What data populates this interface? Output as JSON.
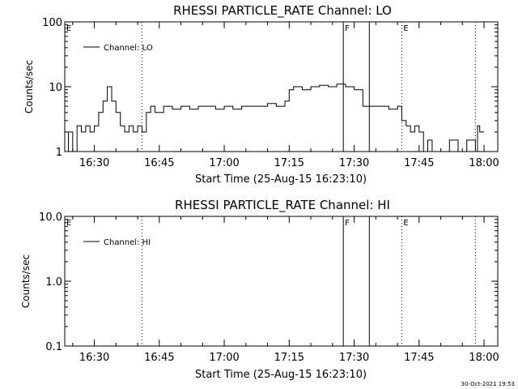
{
  "footer_timestamp": "30-Oct-2021 19:53",
  "chart_data": [
    {
      "type": "line",
      "title": "RHESSI PARTICLE_RATE Channel: LO",
      "xlabel": "Start Time (25-Aug-15 16:23:10)",
      "ylabel": "Counts/sec",
      "yscale": "log",
      "ylim": [
        1,
        100
      ],
      "xlim": [
        "16:23:10",
        "18:03:10"
      ],
      "x_ticks": [
        "16:30",
        "16:45",
        "17:00",
        "17:15",
        "17:30",
        "17:45",
        "18:00"
      ],
      "y_ticks": [
        "1",
        "10",
        "100"
      ],
      "legend": {
        "label": "Channel: LO",
        "position": "top-left"
      },
      "grid": false,
      "markers": [
        {
          "time": "16:41:00",
          "label": "",
          "style": "dotted"
        },
        {
          "time": "17:27:30",
          "label": "F",
          "style": "solid"
        },
        {
          "time": "17:33:30",
          "label": "",
          "style": "solid"
        },
        {
          "time": "17:41:00",
          "label": "E",
          "style": "dotted"
        },
        {
          "time": "17:58:00",
          "label": "",
          "style": "dotted"
        }
      ],
      "corner_label": "E",
      "series": [
        {
          "name": "Channel: LO",
          "x": [
            "16:23:10",
            "16:24:00",
            "16:25:00",
            "16:26:00",
            "16:27:00",
            "16:28:00",
            "16:29:00",
            "16:30:00",
            "16:31:00",
            "16:32:00",
            "16:33:00",
            "16:34:00",
            "16:35:00",
            "16:36:00",
            "16:37:00",
            "16:38:00",
            "16:39:00",
            "16:40:00",
            "16:41:00",
            "16:42:00",
            "16:43:00",
            "16:44:00",
            "16:46:00",
            "16:48:00",
            "16:50:00",
            "16:52:00",
            "16:54:00",
            "16:56:00",
            "16:58:00",
            "17:00:00",
            "17:02:00",
            "17:04:00",
            "17:06:00",
            "17:08:00",
            "17:10:00",
            "17:12:00",
            "17:14:00",
            "17:15:00",
            "17:16:00",
            "17:18:00",
            "17:20:00",
            "17:22:00",
            "17:24:00",
            "17:26:00",
            "17:28:00",
            "17:30:00",
            "17:32:00",
            "17:34:00",
            "17:36:00",
            "17:38:00",
            "17:40:00",
            "17:41:00",
            "17:42:00",
            "17:43:00",
            "17:44:00",
            "17:45:00",
            "17:46:00",
            "17:47:00",
            "17:48:00",
            "17:50:00",
            "17:52:00",
            "17:54:00",
            "17:56:00",
            "17:58:00",
            "17:58:30",
            "17:59:00",
            "18:00:00"
          ],
          "y": [
            1,
            2,
            1,
            2.5,
            2,
            2.5,
            2,
            2.5,
            4,
            6,
            10,
            6,
            4,
            2.5,
            2,
            2.5,
            2,
            2.5,
            2,
            4,
            5,
            4,
            5,
            4.5,
            5,
            4.5,
            5,
            5,
            4.5,
            5,
            4.5,
            5,
            5,
            5,
            5.5,
            5,
            6,
            9,
            10,
            9,
            10,
            10.5,
            10,
            11,
            10,
            9,
            5,
            5,
            5,
            4.5,
            5,
            3,
            2.5,
            2,
            2.5,
            2,
            1,
            1.5,
            1,
            1,
            1.5,
            1,
            1.5,
            1,
            2.5,
            2,
            2
          ]
        }
      ]
    },
    {
      "type": "line",
      "title": "RHESSI PARTICLE_RATE Channel: HI",
      "xlabel": "Start Time (25-Aug-15 16:23:10)",
      "ylabel": "Counts/sec",
      "yscale": "log",
      "ylim": [
        0.1,
        10
      ],
      "xlim": [
        "16:23:10",
        "18:03:10"
      ],
      "x_ticks": [
        "16:30",
        "16:45",
        "17:00",
        "17:15",
        "17:30",
        "17:45",
        "18:00"
      ],
      "y_ticks": [
        "0.1",
        "1.0",
        "10.0"
      ],
      "legend": {
        "label": "Channel: HI",
        "position": "top-left"
      },
      "grid": false,
      "markers": [
        {
          "time": "16:41:00",
          "label": "",
          "style": "dotted"
        },
        {
          "time": "17:27:30",
          "label": "F",
          "style": "solid"
        },
        {
          "time": "17:33:30",
          "label": "",
          "style": "solid"
        },
        {
          "time": "17:41:00",
          "label": "E",
          "style": "dotted"
        },
        {
          "time": "17:58:00",
          "label": "",
          "style": "dotted"
        }
      ],
      "corner_label": "E",
      "series": []
    }
  ]
}
